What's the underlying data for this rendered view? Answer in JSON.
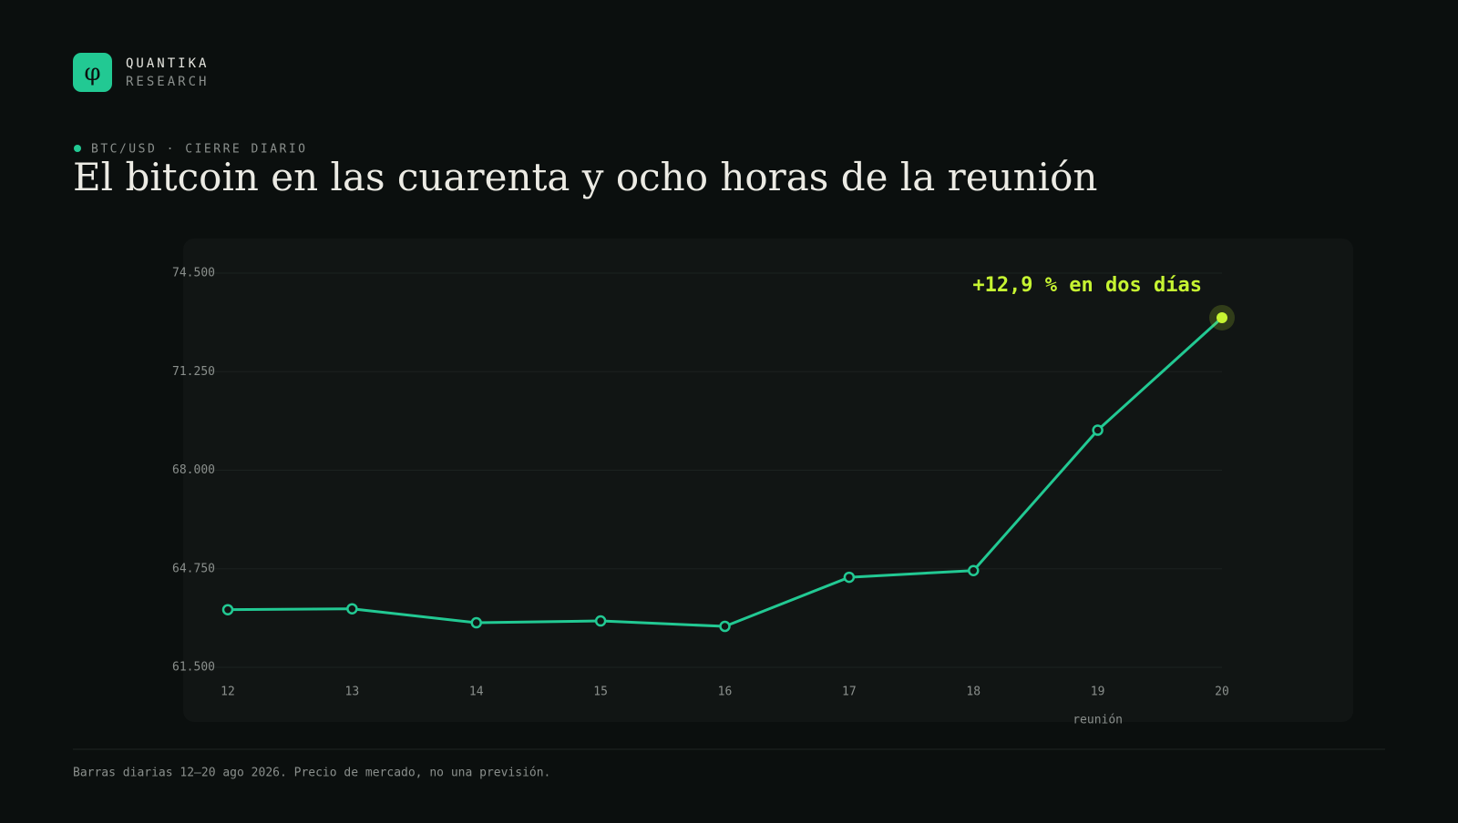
{
  "brand": {
    "mark": "φ",
    "name": "QUANTIKA",
    "sub": "RESEARCH"
  },
  "chart_data": {
    "type": "line",
    "kicker": "BTC/USD · CIERRE DIARIO",
    "title": "El bitcoin en las cuarenta y ocho horas de la reunión",
    "categories": [
      "12",
      "13",
      "14",
      "15",
      "16",
      "17",
      "18",
      "19",
      "20"
    ],
    "values": [
      63400,
      63430,
      62970,
      63030,
      62850,
      64470,
      64690,
      69320,
      73030
    ],
    "color": "#22c993",
    "highlight_color": "#c6f432",
    "ylim": [
      61500,
      74500
    ],
    "yticks": [
      {
        "value": 61500,
        "label": "61.500"
      },
      {
        "value": 64750,
        "label": "64.750"
      },
      {
        "value": 68000,
        "label": "68.000"
      },
      {
        "value": 71250,
        "label": "71.250"
      },
      {
        "value": 74500,
        "label": "74.500"
      }
    ],
    "grid": true,
    "annotations": [
      {
        "text": "+12,9 % en dos días",
        "category": "20"
      },
      {
        "text": "reunión",
        "category": "19"
      }
    ]
  },
  "footer": "Barras diarias 12–20 ago 2026. Precio de mercado, no una previsión."
}
